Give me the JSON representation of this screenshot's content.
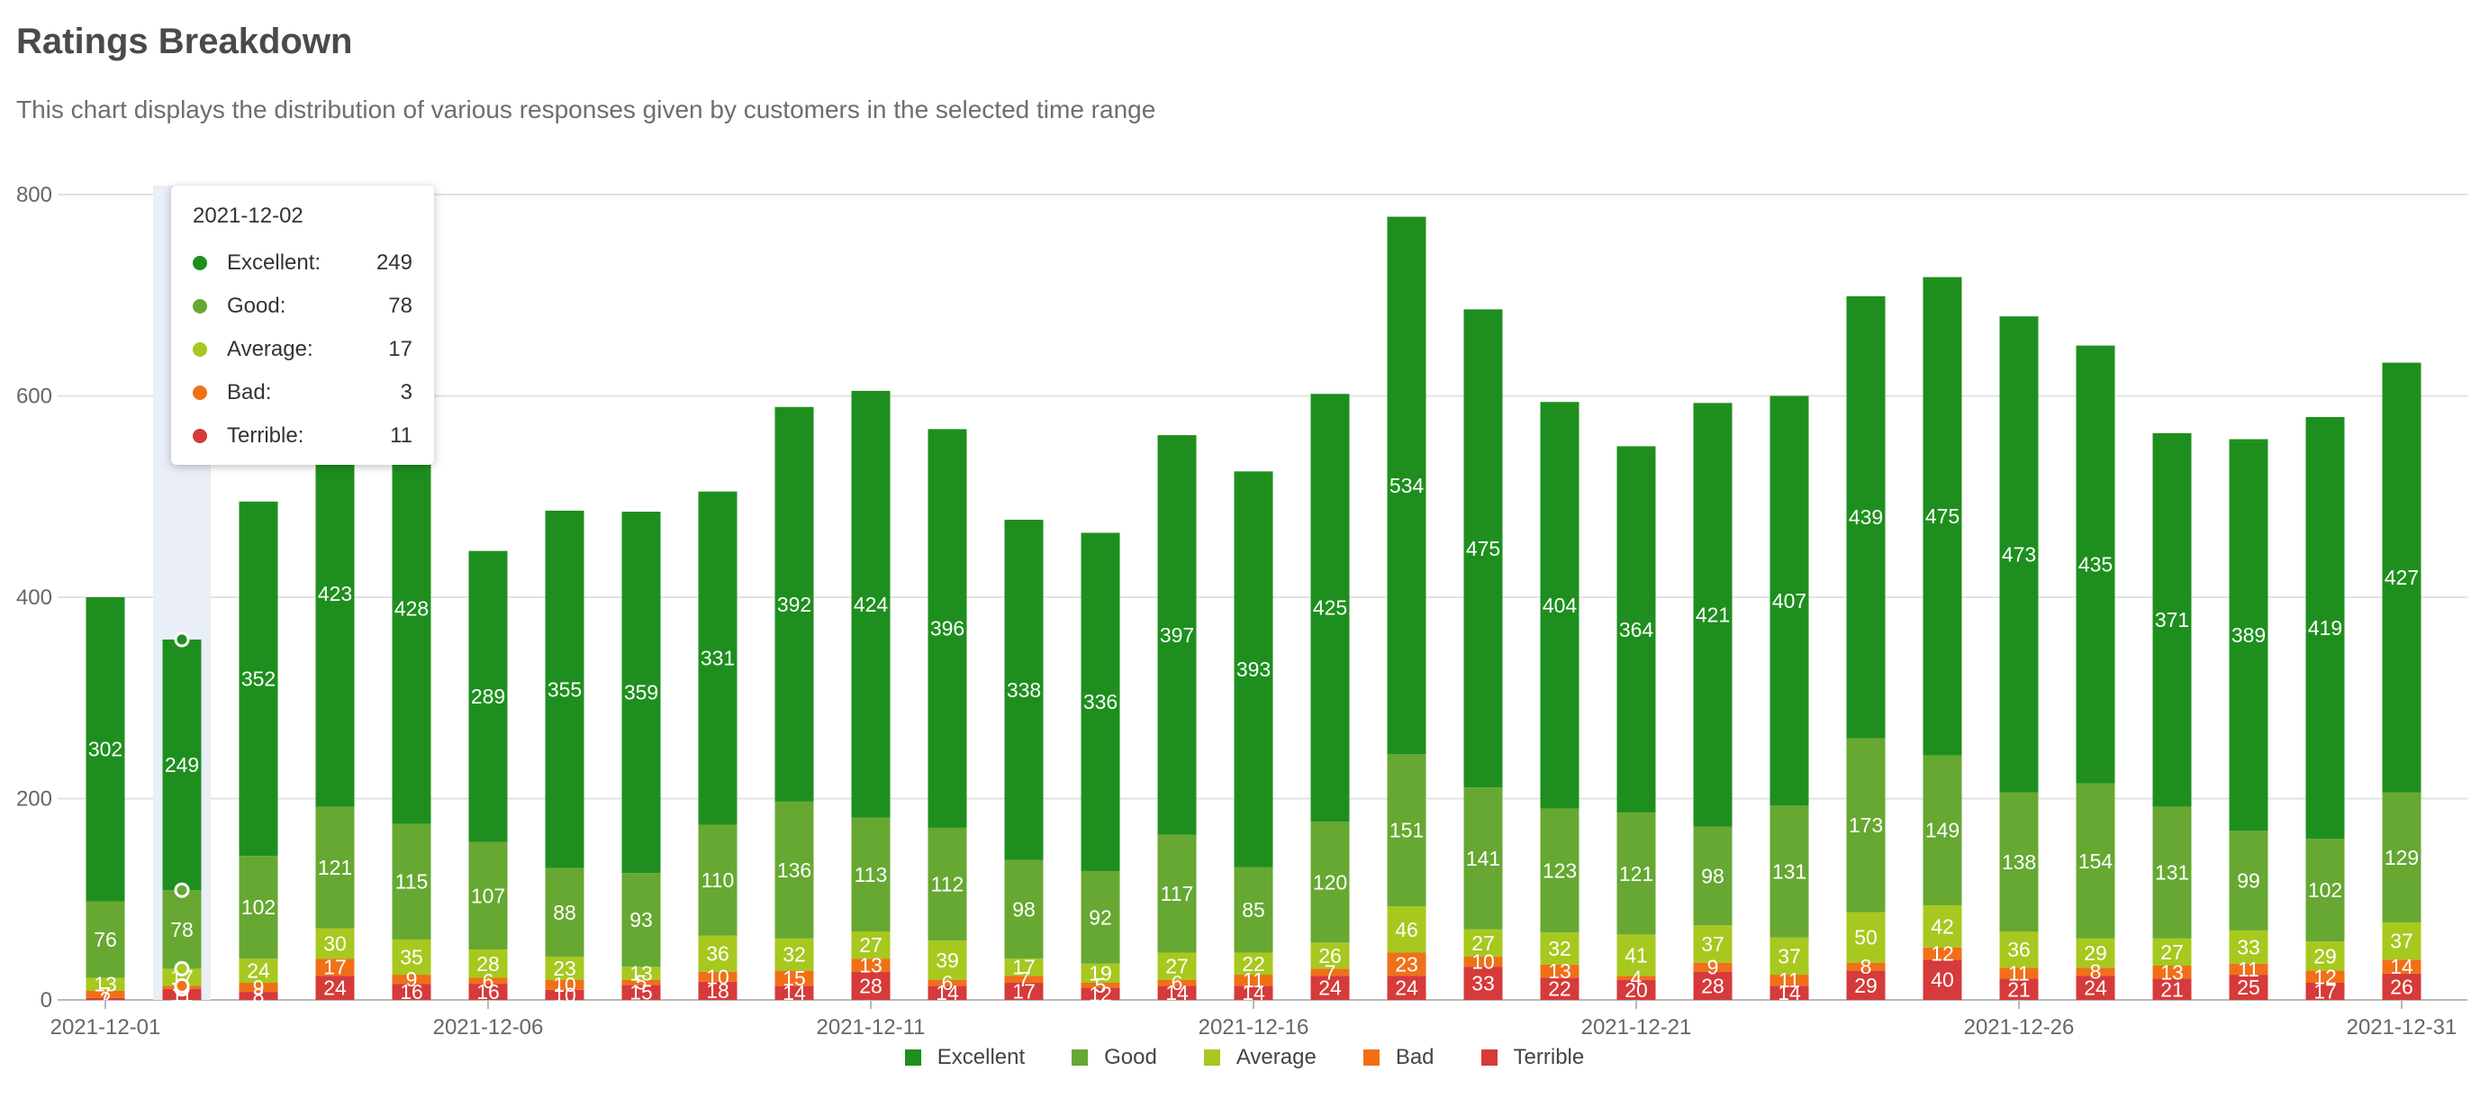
{
  "header": {
    "title": "Ratings Breakdown",
    "subtitle": "This chart displays the distribution of various responses given by customers in the selected time range"
  },
  "colors": {
    "Excellent": "#1e8f1e",
    "Good": "#66a832",
    "Average": "#a7c81e",
    "Bad": "#f07018",
    "Terrible": "#d63a3a"
  },
  "tooltip": {
    "date": "2021-12-02",
    "rows": [
      {
        "label": "Excellent:",
        "value": "249"
      },
      {
        "label": "Good:",
        "value": "78"
      },
      {
        "label": "Average:",
        "value": "17"
      },
      {
        "label": "Bad:",
        "value": "3"
      },
      {
        "label": "Terrible:",
        "value": "11"
      }
    ]
  },
  "chart_data": {
    "type": "bar",
    "stacked": true,
    "title": "Ratings Breakdown",
    "xlabel": "",
    "ylabel": "",
    "ylim": [
      0,
      800
    ],
    "yticks": [
      0,
      200,
      400,
      600,
      800
    ],
    "grid": true,
    "legend_position": "bottom",
    "highlighted_category": "2021-12-02",
    "xtick_labels": [
      "2021-12-01",
      "2021-12-06",
      "2021-12-11",
      "2021-12-16",
      "2021-12-21",
      "2021-12-26",
      "2021-12-31"
    ],
    "categories": [
      "2021-12-01",
      "2021-12-02",
      "2021-12-03",
      "2021-12-04",
      "2021-12-05",
      "2021-12-06",
      "2021-12-07",
      "2021-12-08",
      "2021-12-09",
      "2021-12-10",
      "2021-12-11",
      "2021-12-12",
      "2021-12-13",
      "2021-12-14",
      "2021-12-15",
      "2021-12-16",
      "2021-12-17",
      "2021-12-18",
      "2021-12-19",
      "2021-12-20",
      "2021-12-21",
      "2021-12-22",
      "2021-12-23",
      "2021-12-24",
      "2021-12-25",
      "2021-12-26",
      "2021-12-27",
      "2021-12-28",
      "2021-12-29",
      "2021-12-30",
      "2021-12-31"
    ],
    "series": [
      {
        "name": "Terrible",
        "values": [
          2,
          11,
          8,
          24,
          16,
          16,
          10,
          15,
          18,
          14,
          28,
          14,
          17,
          12,
          14,
          14,
          24,
          24,
          33,
          22,
          20,
          28,
          14,
          29,
          40,
          21,
          24,
          21,
          25,
          17,
          26
        ]
      },
      {
        "name": "Bad",
        "values": [
          7,
          3,
          9,
          17,
          9,
          6,
          10,
          5,
          10,
          15,
          13,
          6,
          7,
          5,
          6,
          11,
          7,
          23,
          10,
          13,
          4,
          9,
          11,
          8,
          12,
          11,
          8,
          13,
          11,
          12,
          14
        ]
      },
      {
        "name": "Average",
        "values": [
          13,
          17,
          24,
          30,
          35,
          28,
          23,
          13,
          36,
          32,
          27,
          39,
          17,
          19,
          27,
          22,
          26,
          46,
          27,
          32,
          41,
          37,
          37,
          50,
          42,
          36,
          29,
          27,
          33,
          29,
          37
        ]
      },
      {
        "name": "Good",
        "values": [
          76,
          78,
          102,
          121,
          115,
          107,
          88,
          93,
          110,
          136,
          113,
          112,
          98,
          92,
          117,
          85,
          120,
          151,
          141,
          123,
          121,
          98,
          131,
          173,
          149,
          138,
          154,
          131,
          99,
          102,
          129
        ]
      },
      {
        "name": "Excellent",
        "values": [
          302,
          249,
          352,
          423,
          428,
          289,
          355,
          359,
          331,
          392,
          424,
          396,
          338,
          336,
          397,
          393,
          425,
          534,
          475,
          404,
          364,
          421,
          407,
          439,
          475,
          473,
          435,
          371,
          389,
          419,
          427
        ]
      }
    ]
  }
}
